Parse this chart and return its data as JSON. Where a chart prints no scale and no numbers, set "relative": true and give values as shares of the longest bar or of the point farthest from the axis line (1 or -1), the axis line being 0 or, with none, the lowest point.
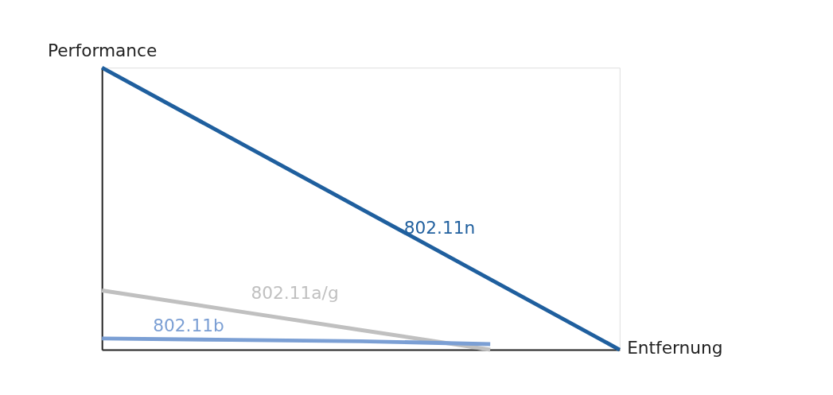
{
  "chart_data": {
    "type": "line",
    "relative": true,
    "xlabel": "Entfernung",
    "ylabel": "Performance",
    "categories": [
      null,
      null,
      null,
      null,
      null
    ],
    "series": [
      {
        "name": "802.11n",
        "color": "#1f5f9e",
        "values": [
          1,
          0.75,
          0.5,
          0.25,
          0
        ]
      },
      {
        "name": "802.11a/g",
        "color": "#c0c0c0",
        "values": [
          0.21,
          0.14,
          0.07,
          0,
          null
        ]
      },
      {
        "name": "802.11b",
        "color": "#7b9fd4",
        "values": [
          0.04,
          0.035,
          0.03,
          0.02,
          null
        ]
      }
    ],
    "grid": false,
    "marker": "none",
    "line_style": "solid",
    "tick_labels": false
  }
}
